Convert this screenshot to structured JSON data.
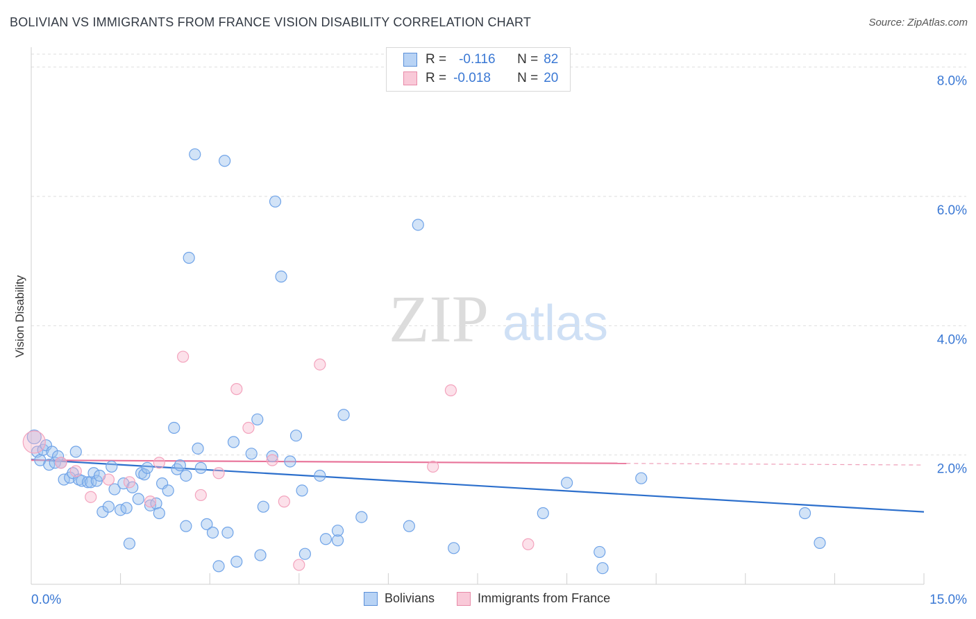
{
  "header": {
    "title": "BOLIVIAN VS IMMIGRANTS FROM FRANCE VISION DISABILITY CORRELATION CHART",
    "source": "Source: ZipAtlas.com"
  },
  "legend": {
    "r_label": "R =",
    "n_label": "N =",
    "rows": [
      {
        "r": "-0.116",
        "n": "82",
        "color": "#b8d3f5",
        "border": "#5a8fd8"
      },
      {
        "r": "-0.018",
        "n": "20",
        "color": "#f9c9d8",
        "border": "#e88aa8"
      }
    ]
  },
  "bottom_legend": [
    {
      "label": "Bolivians",
      "color": "#b8d3f5",
      "border": "#5a8fd8"
    },
    {
      "label": "Immigrants from France",
      "color": "#f9c9d8",
      "border": "#e88aa8"
    }
  ],
  "watermark": {
    "zip": "ZIP",
    "atlas": "atlas"
  },
  "chart_data": {
    "type": "scatter",
    "title": "BOLIVIAN VS IMMIGRANTS FROM FRANCE VISION DISABILITY CORRELATION CHART",
    "xlabel": "",
    "ylabel": "Vision Disability",
    "xlim": [
      0,
      15
    ],
    "ylim": [
      0,
      8.2
    ],
    "x_tick_labels": [
      "0.0%",
      "15.0%"
    ],
    "y_ticks": [
      2,
      4,
      6,
      8
    ],
    "y_tick_labels": [
      "2.0%",
      "4.0%",
      "6.0%",
      "8.0%"
    ],
    "grid": true,
    "series": [
      {
        "name": "Bolivians",
        "color": "#6fa3e8",
        "trend": {
          "x0": 0,
          "y0": 1.93,
          "x1": 15,
          "y1": 1.12,
          "color": "#2c6fcc"
        },
        "points": [
          [
            0.05,
            2.28
          ],
          [
            0.1,
            2.05
          ],
          [
            0.15,
            1.92
          ],
          [
            0.2,
            2.08
          ],
          [
            0.25,
            2.15
          ],
          [
            0.3,
            1.85
          ],
          [
            0.35,
            2.05
          ],
          [
            0.4,
            1.88
          ],
          [
            0.45,
            1.98
          ],
          [
            0.5,
            1.88
          ],
          [
            0.55,
            1.62
          ],
          [
            0.65,
            1.65
          ],
          [
            0.7,
            1.72
          ],
          [
            0.75,
            2.05
          ],
          [
            0.8,
            1.62
          ],
          [
            0.85,
            1.6
          ],
          [
            0.95,
            1.58
          ],
          [
            1.0,
            1.58
          ],
          [
            1.05,
            1.72
          ],
          [
            1.1,
            1.6
          ],
          [
            1.15,
            1.68
          ],
          [
            1.2,
            1.12
          ],
          [
            1.3,
            1.2
          ],
          [
            1.35,
            1.82
          ],
          [
            1.4,
            1.47
          ],
          [
            1.5,
            1.15
          ],
          [
            1.55,
            1.56
          ],
          [
            1.6,
            1.18
          ],
          [
            1.65,
            0.63
          ],
          [
            1.7,
            1.5
          ],
          [
            1.8,
            1.32
          ],
          [
            1.85,
            1.72
          ],
          [
            1.9,
            1.7
          ],
          [
            1.95,
            1.8
          ],
          [
            2.0,
            1.22
          ],
          [
            2.1,
            1.25
          ],
          [
            2.15,
            1.1
          ],
          [
            2.2,
            1.56
          ],
          [
            2.3,
            1.45
          ],
          [
            2.4,
            2.42
          ],
          [
            2.45,
            1.78
          ],
          [
            2.5,
            1.84
          ],
          [
            2.6,
            0.9
          ],
          [
            2.6,
            1.68
          ],
          [
            2.65,
            5.05
          ],
          [
            2.75,
            6.65
          ],
          [
            2.8,
            2.1
          ],
          [
            2.85,
            1.8
          ],
          [
            2.95,
            0.93
          ],
          [
            3.05,
            0.8
          ],
          [
            3.15,
            0.28
          ],
          [
            3.25,
            6.55
          ],
          [
            3.3,
            0.8
          ],
          [
            3.4,
            2.2
          ],
          [
            3.45,
            0.35
          ],
          [
            3.7,
            2.02
          ],
          [
            3.8,
            2.55
          ],
          [
            3.85,
            0.45
          ],
          [
            3.9,
            1.2
          ],
          [
            4.05,
            1.98
          ],
          [
            4.1,
            5.92
          ],
          [
            4.2,
            4.76
          ],
          [
            4.35,
            1.9
          ],
          [
            4.45,
            2.3
          ],
          [
            4.55,
            1.45
          ],
          [
            4.6,
            0.47
          ],
          [
            4.85,
            1.68
          ],
          [
            4.95,
            0.7
          ],
          [
            5.15,
            0.68
          ],
          [
            5.15,
            0.83
          ],
          [
            5.25,
            2.62
          ],
          [
            5.55,
            1.04
          ],
          [
            6.35,
            0.9
          ],
          [
            6.5,
            5.56
          ],
          [
            7.1,
            0.56
          ],
          [
            8.6,
            1.1
          ],
          [
            9.0,
            1.57
          ],
          [
            9.55,
            0.5
          ],
          [
            9.6,
            0.25
          ],
          [
            10.25,
            1.64
          ],
          [
            13.0,
            1.1
          ],
          [
            13.25,
            0.64
          ]
        ]
      },
      {
        "name": "Immigrants from France",
        "color": "#f3a3bd",
        "trend": {
          "x0": 0,
          "y0": 1.92,
          "x1": 10.0,
          "y1": 1.87,
          "dash_to_x": 15,
          "color": "#e8749a"
        },
        "points": [
          [
            0.05,
            2.2
          ],
          [
            0.5,
            1.88
          ],
          [
            0.75,
            1.75
          ],
          [
            1.0,
            1.35
          ],
          [
            1.3,
            1.62
          ],
          [
            1.65,
            1.58
          ],
          [
            2.0,
            1.28
          ],
          [
            2.15,
            1.88
          ],
          [
            2.55,
            3.52
          ],
          [
            2.85,
            1.38
          ],
          [
            3.15,
            1.72
          ],
          [
            3.45,
            3.02
          ],
          [
            3.65,
            2.42
          ],
          [
            4.05,
            1.92
          ],
          [
            4.25,
            1.28
          ],
          [
            4.5,
            0.3
          ],
          [
            4.85,
            3.4
          ],
          [
            6.75,
            1.82
          ],
          [
            7.05,
            3.0
          ],
          [
            8.35,
            0.62
          ]
        ]
      }
    ]
  }
}
